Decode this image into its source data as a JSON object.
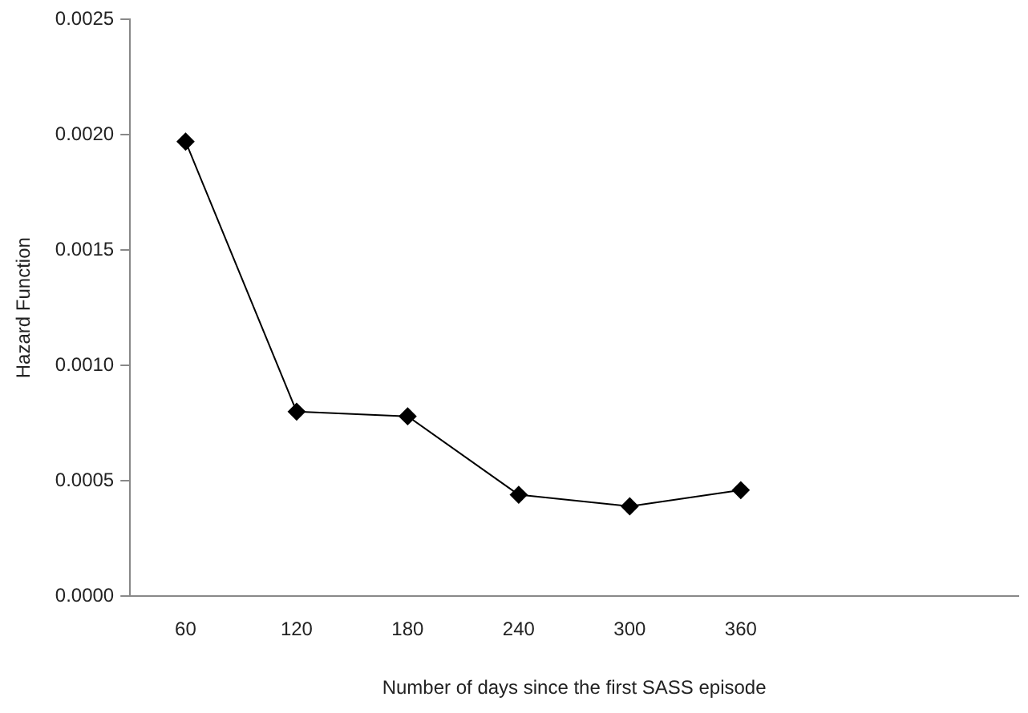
{
  "chart_data": {
    "type": "line",
    "xlabel": "Number of days since the first SASS episode",
    "ylabel": "Hazard Function",
    "categories": [
      "60",
      "120",
      "180",
      "240",
      "300",
      "360",
      null,
      null
    ],
    "values": [
      0.00197,
      0.0008,
      0.00078,
      0.00044,
      0.00039,
      0.00046,
      null,
      null
    ],
    "color": "#000000",
    "marker": "diamond",
    "line_style": "solid",
    "ylim": [
      0,
      0.0025
    ],
    "yticks": [
      {
        "value": 0,
        "label": "0.0000"
      },
      {
        "value": 0.0005,
        "label": "0.0005"
      },
      {
        "value": 0.001,
        "label": "0.0010"
      },
      {
        "value": 0.0015,
        "label": "0.0015"
      },
      {
        "value": 0.002,
        "label": "0.0020"
      },
      {
        "value": 0.0025,
        "label": "0.0025"
      }
    ],
    "grid": false,
    "legend": false
  }
}
